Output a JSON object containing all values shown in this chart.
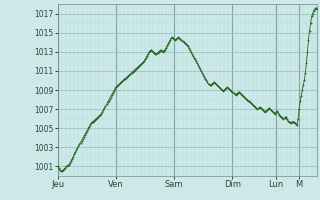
{
  "background_color": "#cce8e8",
  "plot_bg_color": "#cce8e8",
  "grid_color_major": "#99bbbb",
  "grid_color_minor": "#bbdddd",
  "line_color": "#226622",
  "marker_color": "#226622",
  "ylim": [
    1000,
    1018
  ],
  "yticks": [
    1001,
    1003,
    1005,
    1007,
    1009,
    1011,
    1013,
    1015,
    1017
  ],
  "day_labels": [
    "Jeu",
    "Ven",
    "Sam",
    "Dim",
    "Lun",
    "M"
  ],
  "day_positions": [
    0,
    56,
    112,
    168,
    210,
    232
  ],
  "num_points": 240,
  "data_y": [
    1001.0,
    1000.8,
    1000.6,
    1000.5,
    1000.5,
    1000.6,
    1000.7,
    1000.8,
    1001.0,
    1001.0,
    1001.1,
    1001.2,
    1001.4,
    1001.6,
    1001.8,
    1002.0,
    1002.3,
    1002.5,
    1002.7,
    1002.9,
    1003.1,
    1003.3,
    1003.5,
    1003.7,
    1003.9,
    1004.1,
    1004.3,
    1004.5,
    1004.7,
    1004.9,
    1005.1,
    1005.3,
    1005.5,
    1005.6,
    1005.7,
    1005.8,
    1005.9,
    1006.0,
    1006.1,
    1006.2,
    1006.3,
    1006.4,
    1006.5,
    1006.7,
    1006.9,
    1007.1,
    1007.3,
    1007.5,
    1007.7,
    1007.9,
    1008.1,
    1008.3,
    1008.5,
    1008.7,
    1008.9,
    1009.1,
    1009.3,
    1009.4,
    1009.5,
    1009.6,
    1009.7,
    1009.8,
    1009.9,
    1010.0,
    1010.1,
    1010.2,
    1010.3,
    1010.4,
    1010.5,
    1010.6,
    1010.7,
    1010.8,
    1010.9,
    1011.0,
    1011.1,
    1011.2,
    1011.3,
    1011.4,
    1011.5,
    1011.6,
    1011.7,
    1011.8,
    1011.9,
    1012.0,
    1012.2,
    1012.4,
    1012.6,
    1012.8,
    1013.0,
    1013.1,
    1013.2,
    1013.1,
    1013.0,
    1012.9,
    1012.8,
    1012.8,
    1012.9,
    1013.0,
    1013.1,
    1013.2,
    1013.1,
    1013.0,
    1013.1,
    1013.2,
    1013.4,
    1013.6,
    1013.8,
    1014.0,
    1014.2,
    1014.4,
    1014.5,
    1014.4,
    1014.3,
    1014.2,
    1014.3,
    1014.4,
    1014.5,
    1014.4,
    1014.3,
    1014.2,
    1014.1,
    1014.0,
    1013.9,
    1013.8,
    1013.7,
    1013.6,
    1013.4,
    1013.2,
    1013.0,
    1012.8,
    1012.6,
    1012.4,
    1012.2,
    1012.0,
    1011.8,
    1011.6,
    1011.4,
    1011.2,
    1011.0,
    1010.8,
    1010.6,
    1010.4,
    1010.2,
    1010.0,
    1009.8,
    1009.6,
    1009.5,
    1009.5,
    1009.6,
    1009.7,
    1009.8,
    1009.7,
    1009.6,
    1009.5,
    1009.4,
    1009.3,
    1009.2,
    1009.1,
    1009.0,
    1008.9,
    1009.0,
    1009.1,
    1009.2,
    1009.3,
    1009.2,
    1009.1,
    1009.0,
    1008.9,
    1008.8,
    1008.7,
    1008.6,
    1008.5,
    1008.6,
    1008.7,
    1008.8,
    1008.7,
    1008.6,
    1008.5,
    1008.4,
    1008.3,
    1008.2,
    1008.1,
    1008.0,
    1007.9,
    1007.8,
    1007.7,
    1007.6,
    1007.5,
    1007.4,
    1007.3,
    1007.2,
    1007.1,
    1007.0,
    1007.1,
    1007.2,
    1007.1,
    1007.0,
    1006.9,
    1006.8,
    1006.7,
    1006.8,
    1006.9,
    1007.0,
    1007.1,
    1007.0,
    1006.9,
    1006.8,
    1006.7,
    1006.6,
    1006.5,
    1006.7,
    1006.8,
    1006.6,
    1006.4,
    1006.3,
    1006.2,
    1006.1,
    1006.0,
    1006.1,
    1006.2,
    1006.0,
    1005.8,
    1005.7,
    1005.6,
    1005.5,
    1005.6,
    1005.7,
    1005.6,
    1005.5,
    1005.4,
    1005.3,
    1006.0,
    1007.0,
    1007.8,
    1008.4,
    1009.0,
    1009.5,
    1010.0,
    1010.8,
    1011.8,
    1013.0,
    1014.2,
    1015.2,
    1016.0,
    1016.7,
    1017.0,
    1017.3,
    1017.5,
    1017.6,
    1017.5
  ]
}
